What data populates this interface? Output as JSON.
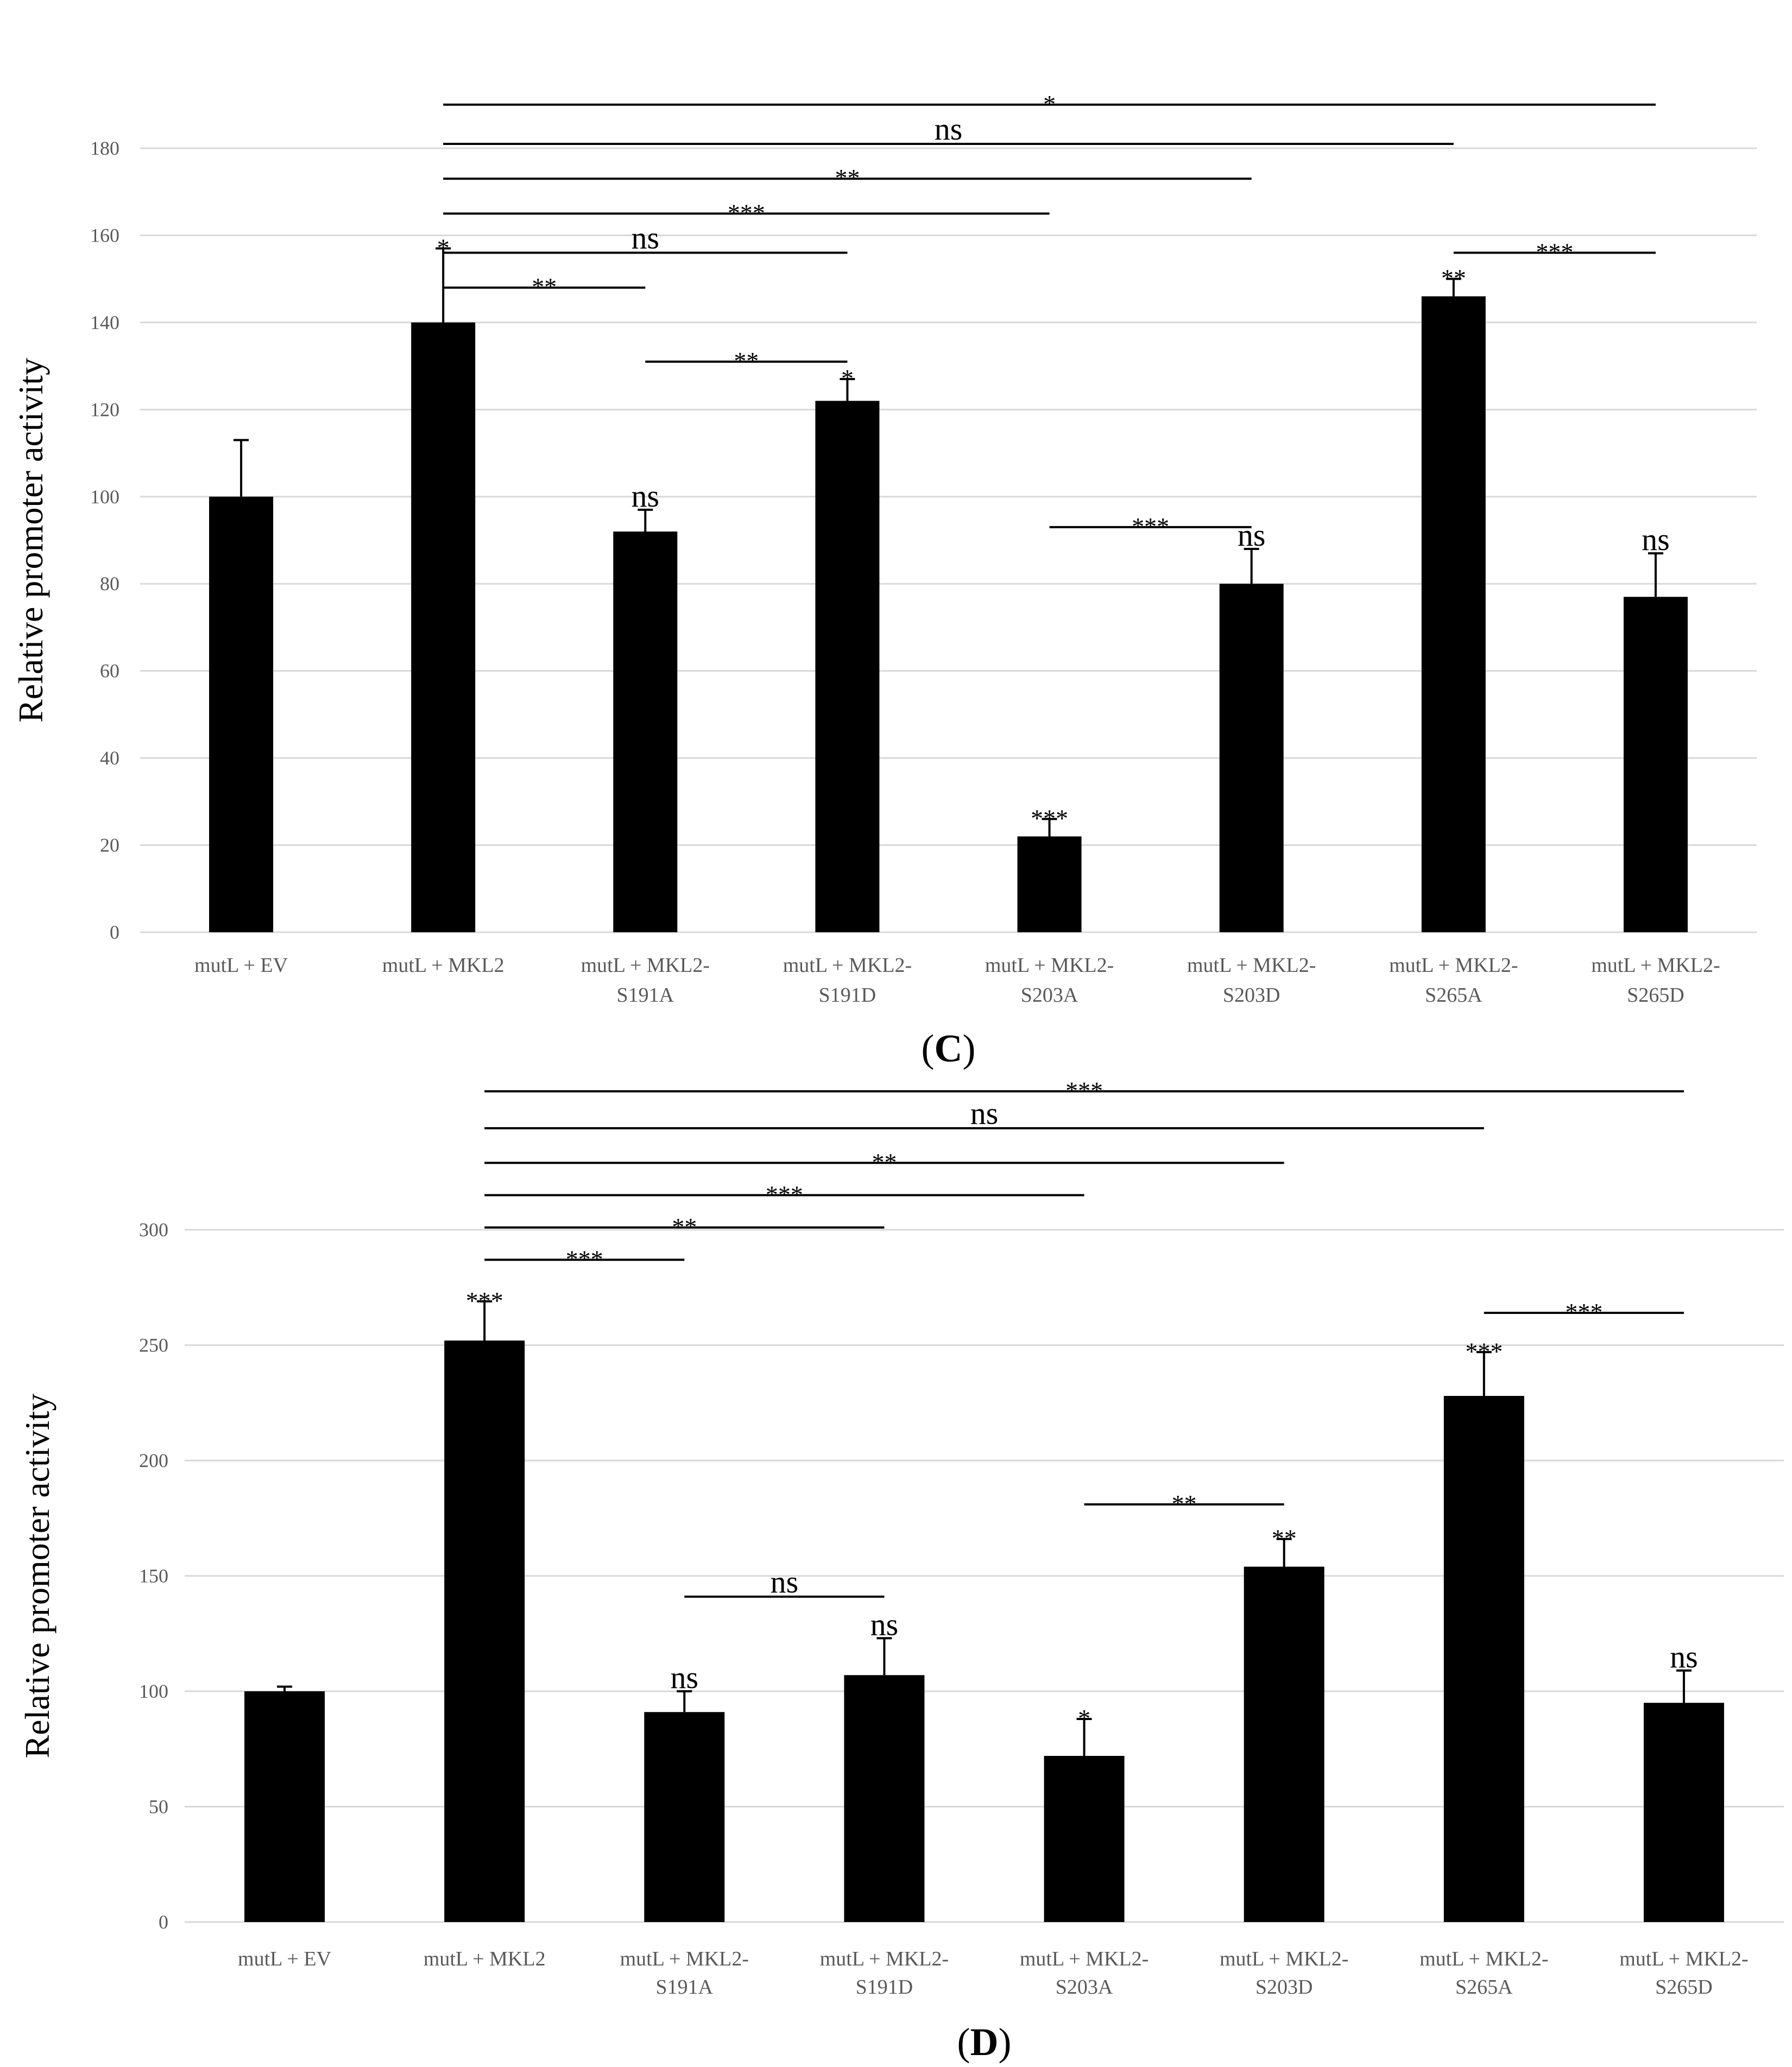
{
  "chart_data": [
    {
      "type": "bar",
      "panel_letter": "C",
      "ylabel": "Relative promoter activity",
      "ylim": [
        0,
        180
      ],
      "yticks": [
        0,
        20,
        40,
        60,
        80,
        100,
        120,
        140,
        160,
        180
      ],
      "grid": true,
      "categories": [
        [
          "mutL + EV"
        ],
        [
          "mutL + MKL2"
        ],
        [
          "mutL + MKL2-",
          "S191A"
        ],
        [
          "mutL + MKL2-",
          "S191D"
        ],
        [
          "mutL + MKL2-",
          "S203A"
        ],
        [
          "mutL + MKL2-",
          "S203D"
        ],
        [
          "mutL + MKL2-",
          "S265A"
        ],
        [
          "mutL + MKL2-",
          "S265D"
        ]
      ],
      "values": [
        100,
        140,
        92,
        122,
        22,
        80,
        146,
        77
      ],
      "errors": [
        13,
        17,
        5,
        5,
        4,
        8,
        4,
        10
      ],
      "bar_annotations": [
        "",
        "*",
        "ns",
        "*",
        "***",
        "ns",
        "**",
        "ns"
      ],
      "brackets": [
        {
          "from": 1,
          "to": 7,
          "label": "*",
          "level": 190
        },
        {
          "from": 1,
          "to": 6,
          "label": "ns",
          "level": 181
        },
        {
          "from": 1,
          "to": 5,
          "label": "**",
          "level": 173
        },
        {
          "from": 1,
          "to": 4,
          "label": "***",
          "level": 165
        },
        {
          "from": 1,
          "to": 3,
          "label": "ns",
          "level": 156
        },
        {
          "from": 1,
          "to": 2,
          "label": "**",
          "level": 148
        },
        {
          "from": 2,
          "to": 3,
          "label": "**",
          "level": 131
        },
        {
          "from": 4,
          "to": 5,
          "label": "***",
          "level": 93
        },
        {
          "from": 6,
          "to": 7,
          "label": "***",
          "level": 156
        }
      ]
    },
    {
      "type": "bar",
      "panel_letter": "D",
      "ylabel": "Relative promoter activity",
      "ylim": [
        0,
        300
      ],
      "yticks": [
        0,
        50,
        100,
        150,
        200,
        250,
        300
      ],
      "grid": true,
      "categories": [
        [
          "mutL + EV"
        ],
        [
          "mutL + MKL2"
        ],
        [
          "mutL + MKL2-",
          "S191A"
        ],
        [
          "mutL + MKL2-",
          "S191D"
        ],
        [
          "mutL + MKL2-",
          "S203A"
        ],
        [
          "mutL + MKL2-",
          "S203D"
        ],
        [
          "mutL + MKL2-",
          "S265A"
        ],
        [
          "mutL + MKL2-",
          "S265D"
        ]
      ],
      "values": [
        100,
        252,
        91,
        107,
        72,
        154,
        228,
        95
      ],
      "errors": [
        2,
        17,
        9,
        16,
        16,
        12,
        19,
        14
      ],
      "bar_annotations": [
        "",
        "***",
        "ns",
        "ns",
        "*",
        "**",
        "***",
        "ns"
      ],
      "brackets": [
        {
          "from": 1,
          "to": 7,
          "label": "***",
          "level": 360
        },
        {
          "from": 1,
          "to": 6,
          "label": "ns",
          "level": 344
        },
        {
          "from": 1,
          "to": 5,
          "label": "**",
          "level": 329
        },
        {
          "from": 1,
          "to": 4,
          "label": "***",
          "level": 315
        },
        {
          "from": 1,
          "to": 3,
          "label": "**",
          "level": 301
        },
        {
          "from": 1,
          "to": 2,
          "label": "***",
          "level": 287
        },
        {
          "from": 2,
          "to": 3,
          "label": "ns",
          "level": 141
        },
        {
          "from": 4,
          "to": 5,
          "label": "**",
          "level": 181
        },
        {
          "from": 6,
          "to": 7,
          "label": "***",
          "level": 264
        }
      ]
    }
  ]
}
